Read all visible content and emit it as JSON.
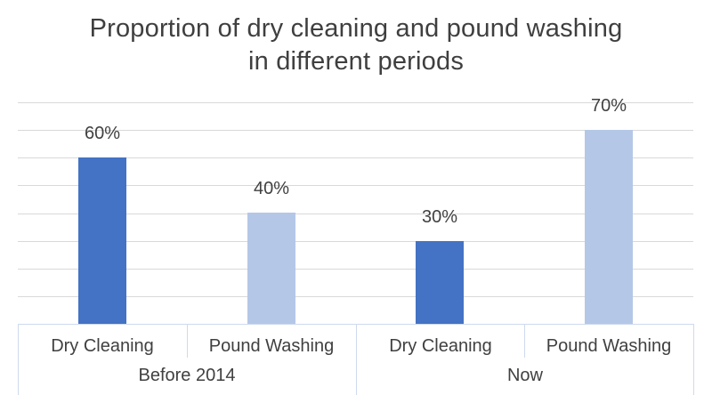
{
  "title": "Proportion of dry cleaning and pound washing in different periods",
  "colors": {
    "dry_cleaning_bar": "#4472C4",
    "pound_washing_bar": "#B4C7E7",
    "gridline": "#D9D9D9",
    "axis_border": "#CFDAEE",
    "text": "#404040",
    "title_text": "#3F3F3F",
    "background": "#FFFFFF"
  },
  "chart_data": {
    "type": "bar",
    "title": "Proportion of dry cleaning and pound washing in different periods",
    "xlabel": "",
    "ylabel": "",
    "ylim": [
      0,
      80
    ],
    "gridline_step": 10,
    "grid": true,
    "legend": false,
    "value_suffix": "%",
    "series_colors": {
      "Dry Cleaning": "#4472C4",
      "Pound Washing": "#B4C7E7"
    },
    "groups": [
      {
        "label": "Before 2014",
        "bars": [
          {
            "category": "Dry Cleaning",
            "value": 60,
            "label": "60%"
          },
          {
            "category": "Pound Washing",
            "value": 40,
            "label": "40%"
          }
        ]
      },
      {
        "label": "Now",
        "bars": [
          {
            "category": "Dry Cleaning",
            "value": 30,
            "label": "30%"
          },
          {
            "category": "Pound Washing",
            "value": 70,
            "label": "70%"
          }
        ]
      }
    ]
  }
}
